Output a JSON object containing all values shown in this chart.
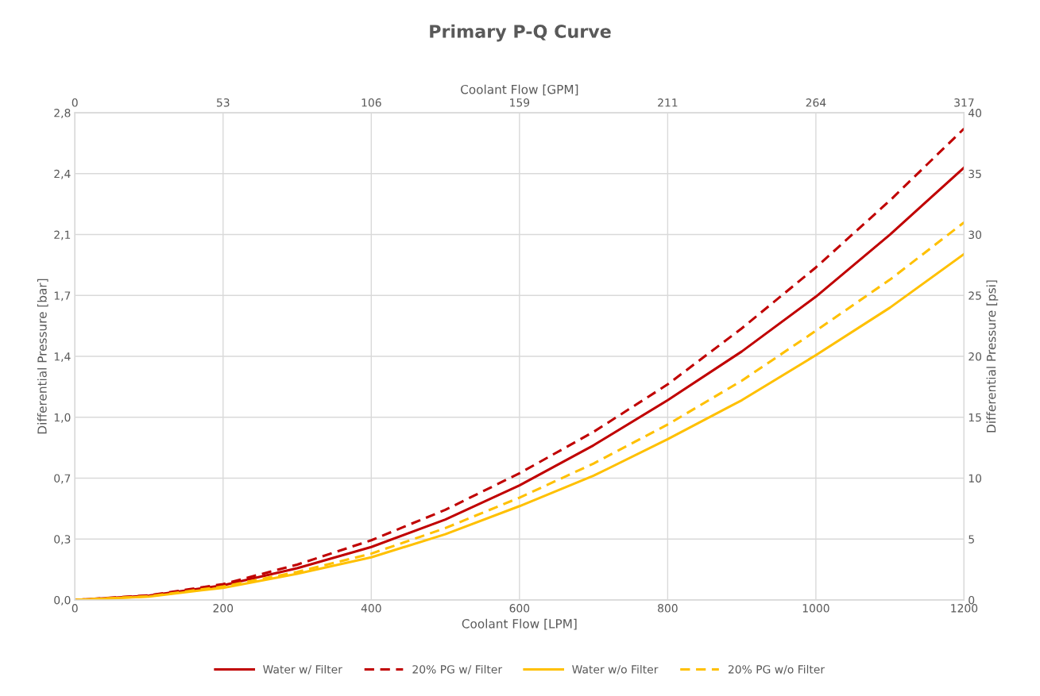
{
  "chart_data": {
    "type": "line",
    "title": "Primary P-Q Curve",
    "xlabel": "Coolant Flow [LPM]",
    "x2label": "Coolant Flow [GPM]",
    "ylabel": "Differential Pressure [bar]",
    "y2label": "Differential Pressure [psi]",
    "x": [
      0,
      100,
      200,
      300,
      400,
      500,
      600,
      700,
      800,
      900,
      1000,
      1100,
      1200
    ],
    "xlim": [
      0,
      1200
    ],
    "xticks": [
      0,
      200,
      400,
      600,
      800,
      1000,
      1200
    ],
    "x2lim": [
      0,
      317.0
    ],
    "x2ticks": [
      0,
      {
        "value": 52.83,
        "label": "53"
      },
      {
        "value": 105.67,
        "label": "106"
      },
      {
        "value": 158.5,
        "label": "159"
      },
      {
        "value": 211.34,
        "label": "211"
      },
      {
        "value": 264.17,
        "label": "264"
      },
      317
    ],
    "ylim": [
      0,
      2.7579
    ],
    "yticks": [
      {
        "value": 0,
        "label": "0,0"
      },
      {
        "value": 0.3447,
        "label": "0,3"
      },
      {
        "value": 0.6895,
        "label": "0,7"
      },
      {
        "value": 1.0342,
        "label": "1,0"
      },
      {
        "value": 1.379,
        "label": "1,4"
      },
      {
        "value": 1.7237,
        "label": "1,7"
      },
      {
        "value": 2.0684,
        "label": "2,1"
      },
      {
        "value": 2.4132,
        "label": "2,4"
      },
      {
        "value": 2.7579,
        "label": "2,8"
      }
    ],
    "y2lim": [
      0,
      40
    ],
    "y2ticks": [
      0,
      5,
      10,
      15,
      20,
      25,
      30,
      35,
      40
    ],
    "grid": true,
    "legend": "bottom",
    "marker": "none",
    "series": [
      {
        "name": "Water w/ Filter",
        "color": "#c00000",
        "axis": "y2",
        "line_style": "solid",
        "values": [
          0,
          0.35,
          1.2,
          2.6,
          4.35,
          6.6,
          9.4,
          12.7,
          16.4,
          20.4,
          24.9,
          30.0,
          35.5
        ]
      },
      {
        "name": "20% PG w/ Filter",
        "color": "#c00000",
        "axis": "y2",
        "line_style": "dashed",
        "values": [
          0,
          0.38,
          1.3,
          2.9,
          4.9,
          7.4,
          10.4,
          13.8,
          17.7,
          22.3,
          27.3,
          32.8,
          38.7
        ]
      },
      {
        "name": "Water w/o Filter",
        "color": "#ffc000",
        "axis": "y2",
        "line_style": "solid",
        "values": [
          0,
          0.28,
          1.0,
          2.15,
          3.5,
          5.4,
          7.7,
          10.2,
          13.2,
          16.4,
          20.1,
          24.0,
          28.4
        ]
      },
      {
        "name": "20% PG w/o Filter",
        "color": "#ffc000",
        "axis": "y2",
        "line_style": "dashed",
        "values": [
          0,
          0.3,
          1.1,
          2.3,
          3.8,
          5.9,
          8.4,
          11.2,
          14.4,
          18.0,
          22.1,
          26.3,
          31.0
        ]
      }
    ]
  }
}
